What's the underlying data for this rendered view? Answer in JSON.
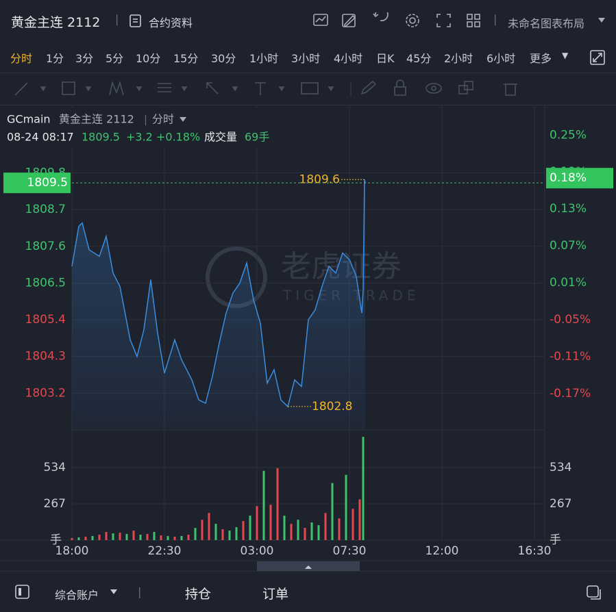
{
  "header": {
    "title": "黄金主连 2112",
    "contract_info": "合约资料",
    "layout_name": "未命名图表布局"
  },
  "timeframes": {
    "items": [
      "分时",
      "1分",
      "3分",
      "5分",
      "10分",
      "15分",
      "30分",
      "1小时",
      "3小时",
      "4小时",
      "日K",
      "45分",
      "2小时",
      "6小时",
      "更多"
    ],
    "active": 0
  },
  "quote": {
    "symbol": "GCmain",
    "name": "黄金主连 2112",
    "period": "分时",
    "time": "08-24 08:17",
    "price": "1809.5",
    "change": "+3.2",
    "change_pct": "+0.18%",
    "volume_label": "成交量",
    "volume": "69手"
  },
  "watermark": {
    "cn": "老虎证券",
    "en": "TIGER TRADE"
  },
  "chart_data": {
    "type": "line",
    "x": [
      0,
      20,
      30,
      50,
      80,
      100,
      120,
      140,
      170,
      190,
      210,
      230,
      250,
      270,
      300,
      320,
      350,
      370,
      390,
      410,
      430,
      450,
      470,
      490,
      510,
      530,
      550,
      570,
      590,
      610,
      630,
      650,
      670,
      690,
      710,
      730,
      750,
      770,
      790,
      810,
      830,
      846,
      850,
      854,
      856
    ],
    "series": [
      {
        "color": "#3b8de0",
        "values": [
          1807.0,
          1808.2,
          1808.3,
          1807.5,
          1807.3,
          1807.9,
          1806.8,
          1806.4,
          1804.8,
          1804.3,
          1805.1,
          1806.6,
          1805.0,
          1803.8,
          1804.8,
          1804.2,
          1803.6,
          1803.0,
          1802.9,
          1803.7,
          1804.7,
          1805.6,
          1806.2,
          1806.5,
          1807.1,
          1806.0,
          1805.3,
          1803.5,
          1803.9,
          1803.0,
          1802.8,
          1803.6,
          1803.4,
          1805.4,
          1805.7,
          1806.4,
          1807.0,
          1806.8,
          1807.4,
          1807.2,
          1806.7,
          1805.6,
          1806.3,
          1809.6,
          1809.5
        ]
      }
    ],
    "xlim": [
      0,
      1380
    ],
    "xticks": [
      {
        "value": 0,
        "label": "18:00"
      },
      {
        "value": 270,
        "label": "22:30"
      },
      {
        "value": 540,
        "label": "03:00"
      },
      {
        "value": 810,
        "label": "07:30"
      },
      {
        "value": 1080,
        "label": "12:00"
      },
      {
        "value": 1350,
        "label": "16:30"
      }
    ],
    "ylim": [
      1802.1,
      1811.8
    ],
    "yticks": [
      1803.2,
      1804.3,
      1805.4,
      1806.5,
      1807.6,
      1808.7,
      1809.8
    ],
    "ytick_colors": [
      "#e5484d",
      "#e5484d",
      "#e5484d",
      "#3ec46d",
      "#3ec46d",
      "#3ec46d",
      "#3ec46d"
    ],
    "y2lim": [
      -0.229,
      0.297
    ],
    "y2ticks": [
      {
        "value": -0.17,
        "label": "-0.17%"
      },
      {
        "value": -0.11,
        "label": "-0.11%"
      },
      {
        "value": -0.05,
        "label": "-0.05%"
      },
      {
        "value": 0.01,
        "label": "0.01%"
      },
      {
        "value": 0.07,
        "label": "0.07%"
      },
      {
        "value": 0.13,
        "label": "0.13%"
      },
      {
        "value": 0.19,
        "label": "0.19%"
      },
      {
        "value": 0.25,
        "label": "0.25%"
      }
    ],
    "grid": true,
    "last_price": 1809.5,
    "last_pct": {
      "value": 0.18,
      "label": "0.18%"
    },
    "high": {
      "x": 854,
      "value": 1809.6
    },
    "low": {
      "x": 630,
      "value": 1802.8
    },
    "volume": {
      "type": "bar",
      "unit": "手",
      "x": [
        0,
        20,
        40,
        60,
        80,
        100,
        120,
        140,
        160,
        180,
        200,
        220,
        240,
        260,
        280,
        300,
        320,
        340,
        360,
        380,
        400,
        420,
        440,
        460,
        480,
        500,
        520,
        540,
        560,
        580,
        600,
        620,
        640,
        660,
        680,
        700,
        720,
        740,
        760,
        780,
        800,
        820,
        840,
        850
      ],
      "values": [
        15,
        20,
        25,
        30,
        40,
        60,
        50,
        55,
        45,
        70,
        40,
        45,
        60,
        35,
        30,
        25,
        30,
        40,
        90,
        150,
        200,
        120,
        80,
        70,
        95,
        140,
        180,
        250,
        510,
        260,
        530,
        180,
        120,
        150,
        90,
        130,
        110,
        200,
        420,
        160,
        480,
        230,
        300,
        760
      ],
      "colors": [
        "#e5484d",
        "#3ec46d",
        "#e5484d",
        "#3ec46d",
        "#e5484d",
        "#e5484d",
        "#3ec46d",
        "#e5484d",
        "#3ec46d",
        "#e5484d",
        "#3ec46d",
        "#e5484d",
        "#3ec46d",
        "#e5484d",
        "#3ec46d",
        "#e5484d",
        "#3ec46d",
        "#e5484d",
        "#3ec46d",
        "#e5484d",
        "#e5484d",
        "#3ec46d",
        "#e5484d",
        "#3ec46d",
        "#3ec46d",
        "#e5484d",
        "#3ec46d",
        "#e5484d",
        "#3ec46d",
        "#e5484d",
        "#e5484d",
        "#3ec46d",
        "#e5484d",
        "#3ec46d",
        "#e5484d",
        "#3ec46d",
        "#3ec46d",
        "#e5484d",
        "#3ec46d",
        "#e5484d",
        "#3ec46d",
        "#e5484d",
        "#e5484d",
        "#3ec46d"
      ],
      "ylim": [
        0,
        811
      ],
      "yticks": [
        267,
        534
      ]
    }
  },
  "footer": {
    "account": "综合账户",
    "positions": "持仓",
    "orders": "订单"
  }
}
